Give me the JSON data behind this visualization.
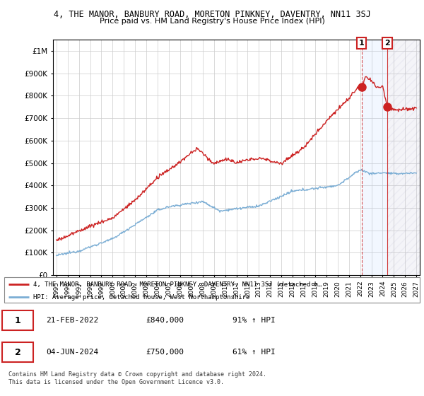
{
  "title": "4, THE MANOR, BANBURY ROAD, MORETON PINKNEY, DAVENTRY, NN11 3SJ",
  "subtitle": "Price paid vs. HM Land Registry's House Price Index (HPI)",
  "ylim": [
    0,
    1050000
  ],
  "yticks": [
    0,
    100000,
    200000,
    300000,
    400000,
    500000,
    600000,
    700000,
    800000,
    900000,
    1000000
  ],
  "ytick_labels": [
    "£0",
    "£100K",
    "£200K",
    "£300K",
    "£400K",
    "£500K",
    "£600K",
    "£700K",
    "£800K",
    "£900K",
    "£1M"
  ],
  "hpi_color": "#7aadd4",
  "property_color": "#cc2222",
  "background_color": "#ffffff",
  "grid_color": "#cccccc",
  "sale1_year": 2022.13,
  "sale1_value": 840000,
  "sale2_year": 2024.42,
  "sale2_value": 750000,
  "legend_line1": "4, THE MANOR, BANBURY ROAD, MORETON PINKNEY, DAVENTRY, NN11 3SJ (detached h…",
  "legend_line2": "HPI: Average price, detached house, West Northamptonshire",
  "table_row1_num": "1",
  "table_row1_date": "21-FEB-2022",
  "table_row1_price": "£840,000",
  "table_row1_hpi": "91% ↑ HPI",
  "table_row2_num": "2",
  "table_row2_date": "04-JUN-2024",
  "table_row2_price": "£750,000",
  "table_row2_hpi": "61% ↑ HPI",
  "footer": "Contains HM Land Registry data © Crown copyright and database right 2024.\nThis data is licensed under the Open Government Licence v3.0.",
  "x_start_year": 1995,
  "x_end_year": 2027
}
